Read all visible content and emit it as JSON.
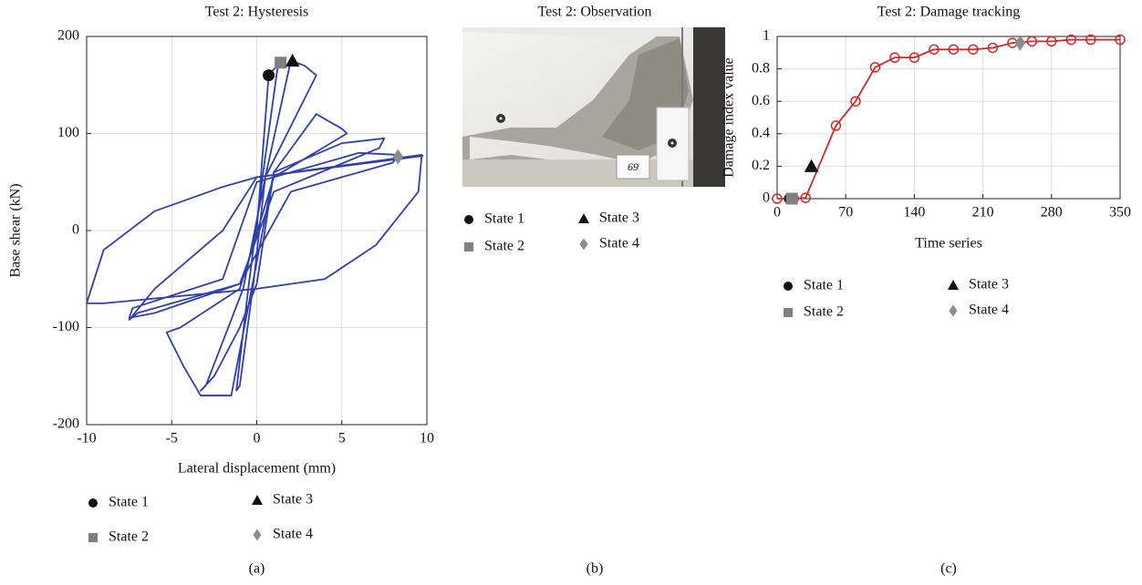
{
  "chart_data": [
    {
      "type": "line",
      "title": "Test 2: Hysteresis",
      "x_label": "Lateral displacement (mm)",
      "y_label": "Base shear (kN)",
      "caption": "(a)",
      "xlim": [
        -10,
        10
      ],
      "xticks": [
        -10,
        -5,
        0,
        5,
        10
      ],
      "ylim": [
        -200,
        200
      ],
      "yticks": [
        -200,
        -100,
        0,
        100,
        200
      ],
      "grid": true,
      "color": "#2f3fae",
      "point_marker": "none",
      "x": [
        0,
        0.7,
        1.3,
        1.2,
        0.3,
        -0.5,
        -1.2,
        -1.0,
        -0.2,
        0.5,
        2.0,
        2.8,
        3.5,
        0.5,
        -0.8,
        -3.0,
        -3.3,
        -2.5,
        -1,
        0,
        1,
        3.5,
        5.0,
        5.3,
        1,
        -1,
        -4.5,
        -5.3,
        -4.3,
        -3.3,
        -1.5,
        -0.3,
        1,
        5,
        7.5,
        7.2,
        1,
        -1,
        -6,
        -7.5,
        -7.3,
        -2,
        0,
        6,
        8.3,
        8.0,
        2,
        -1,
        -7,
        -7.5,
        -6,
        -2,
        0,
        9.7,
        9.5,
        7,
        4,
        0,
        -9,
        -10,
        -9,
        -6,
        -2,
        0,
        9.8
      ],
      "values": [
        0,
        160,
        172,
        165,
        50,
        -60,
        -165,
        -160,
        -55,
        55,
        175,
        170,
        160,
        55,
        -60,
        -160,
        -165,
        -150,
        -100,
        -55,
        60,
        120,
        105,
        100,
        55,
        -60,
        -100,
        -105,
        -140,
        -170,
        -170,
        -60,
        60,
        90,
        95,
        85,
        40,
        -55,
        -85,
        -90,
        -80,
        -50,
        50,
        80,
        78,
        70,
        40,
        -55,
        -85,
        -92,
        -60,
        0,
        55,
        78,
        40,
        -15,
        -50,
        -60,
        -75,
        -75,
        -20,
        20,
        45,
        55,
        77
      ],
      "markers": [
        {
          "name": "State 1",
          "shape": "circle",
          "color": "#111111",
          "x": 0.7,
          "y": 160
        },
        {
          "name": "State 2",
          "shape": "square",
          "color": "#808080",
          "x": 1.4,
          "y": 173
        },
        {
          "name": "State 3",
          "shape": "triangle",
          "color": "#111111",
          "x": 2.1,
          "y": 175
        },
        {
          "name": "State 4",
          "shape": "diamond",
          "color": "#8c8c8c",
          "x": 8.3,
          "y": 76
        }
      ]
    },
    {
      "type": "line",
      "title": "Test 2: Damage tracking",
      "x_label": "Time series",
      "y_label": "Damage index value",
      "caption": "(c)",
      "xlim": [
        0,
        350
      ],
      "xticks": [
        0,
        70,
        140,
        210,
        280,
        350
      ],
      "ylim": [
        0,
        1
      ],
      "yticks": [
        0,
        0.2,
        0.4,
        0.6,
        0.8,
        1
      ],
      "grid": true,
      "color": "#d62728",
      "point_marker": "open-circle",
      "x": [
        0,
        17,
        29,
        60,
        80,
        100,
        120,
        140,
        160,
        180,
        200,
        220,
        240,
        260,
        280,
        300,
        320,
        350
      ],
      "values": [
        0,
        0,
        0.005,
        0.45,
        0.6,
        0.81,
        0.87,
        0.87,
        0.92,
        0.92,
        0.92,
        0.93,
        0.96,
        0.97,
        0.97,
        0.98,
        0.98,
        0.98
      ],
      "markers": [
        {
          "name": "State 1",
          "shape": "circle",
          "color": "#111111",
          "x": 13,
          "y": 0
        },
        {
          "name": "State 2",
          "shape": "square",
          "color": "#808080",
          "x": 15,
          "y": 0
        },
        {
          "name": "State 3",
          "shape": "triangle",
          "color": "#111111",
          "x": 35,
          "y": 0.2
        },
        {
          "name": "State 4",
          "shape": "diamond",
          "color": "#8c8c8c",
          "x": 248,
          "y": 0.96
        }
      ]
    }
  ],
  "panel_b": {
    "title": "Test 2: Observation",
    "caption": "(b)",
    "photo_label": "69",
    "legend": [
      {
        "name": "State 1",
        "shape": "circle",
        "color": "#111111"
      },
      {
        "name": "State 2",
        "shape": "square",
        "color": "#808080"
      },
      {
        "name": "State 3",
        "shape": "triangle",
        "color": "#111111"
      },
      {
        "name": "State 4",
        "shape": "diamond",
        "color": "#8c8c8c"
      }
    ]
  }
}
